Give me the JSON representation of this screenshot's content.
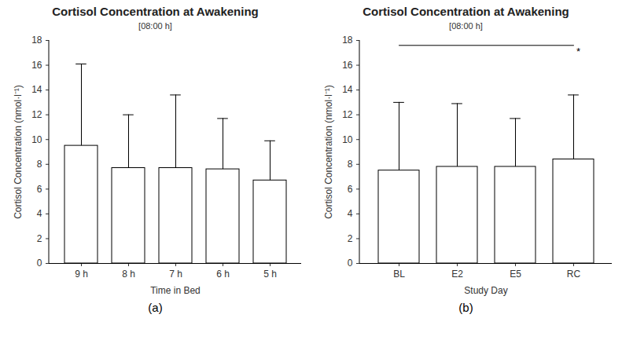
{
  "chart_data": [
    {
      "type": "bar",
      "title": "Cortisol Concentration at Awakening",
      "subtitle": "[08:00 h]",
      "x_label": "Time in Bed",
      "y_label": "Cortisol Concentration (nmol·l⁻¹)",
      "caption": "(a)",
      "categories": [
        "9 h",
        "8 h",
        "7 h",
        "6 h",
        "5 h"
      ],
      "values": [
        9.5,
        7.7,
        7.7,
        7.6,
        6.7
      ],
      "errors": [
        6.6,
        4.3,
        5.9,
        4.1,
        3.2
      ],
      "color": "#ffffff",
      "ylim": [
        0,
        18
      ],
      "yticks": [
        0,
        2,
        4,
        6,
        8,
        10,
        12,
        14,
        16,
        18
      ]
    },
    {
      "type": "bar",
      "title": "Cortisol Concentration at Awakening",
      "subtitle": "[08:00 h]",
      "x_label": "Study Day",
      "y_label": "Cortisol Concentration (nmol·l⁻¹)",
      "caption": "(b)",
      "categories": [
        "BL",
        "E2",
        "E5",
        "RC"
      ],
      "values": [
        7.5,
        7.8,
        7.8,
        8.4
      ],
      "errors": [
        5.5,
        5.1,
        3.9,
        5.2
      ],
      "color": "#ffffff",
      "ylim": [
        0,
        18
      ],
      "yticks": [
        0,
        2,
        4,
        6,
        8,
        10,
        12,
        14,
        16,
        18
      ],
      "significance": {
        "from": "BL",
        "to": "RC",
        "y": 17.6,
        "label": "*"
      }
    }
  ]
}
